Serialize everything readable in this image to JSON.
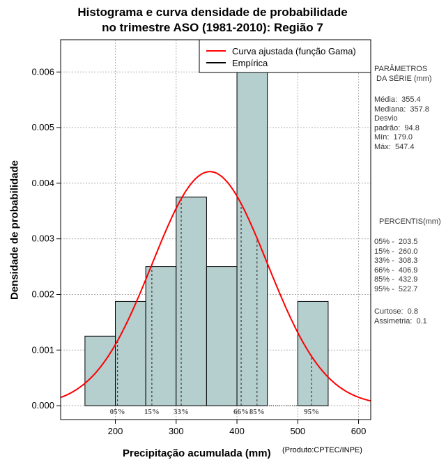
{
  "chart_data": {
    "type": "bar",
    "title_line1": "Histograma e curva densidade de probabilidade",
    "title_line2": "no trimestre ASO (1981-2010): Região 7",
    "xlabel": "Precipitação acumulada (mm)",
    "ylabel": "Densidade de probabilidade",
    "credit": "(Produto:CPTEC/INPE)",
    "xlim": [
      110,
      620
    ],
    "ylim": [
      -0.00025,
      0.00658
    ],
    "x_ticks": [
      200,
      300,
      400,
      500,
      600
    ],
    "y_ticks": [
      0.0,
      0.001,
      0.002,
      0.003,
      0.004,
      0.005,
      0.006
    ],
    "y_tick_labels": [
      "0.000",
      "0.001",
      "0.002",
      "0.003",
      "0.004",
      "0.005",
      "0.006"
    ],
    "bins": [
      {
        "start": 150,
        "end": 200,
        "density": 0.00125
      },
      {
        "start": 200,
        "end": 250,
        "density": 0.001875
      },
      {
        "start": 250,
        "end": 300,
        "density": 0.0025
      },
      {
        "start": 300,
        "end": 350,
        "density": 0.00375
      },
      {
        "start": 350,
        "end": 400,
        "density": 0.0025
      },
      {
        "start": 400,
        "end": 450,
        "density": 0.0066
      },
      {
        "start": 450,
        "end": 500,
        "density": 0
      },
      {
        "start": 500,
        "end": 550,
        "density": 0.001875
      }
    ],
    "curve": {
      "mean": 355.4,
      "sd": 94.8
    },
    "legend": [
      {
        "label": "Curva ajustada (função Gama)",
        "color": "#ff0000"
      },
      {
        "label": "Empírica",
        "color": "#000000"
      }
    ],
    "percentile_markers": [
      {
        "label": "05%",
        "value": 203.5
      },
      {
        "label": "15%",
        "value": 260.0
      },
      {
        "label": "33%",
        "value": 308.3
      },
      {
        "label": "66%",
        "value": 406.9
      },
      {
        "label": "85%",
        "value": 432.9
      },
      {
        "label": "95%",
        "value": 522.7
      }
    ],
    "colors": {
      "bar_fill": "#b5cece",
      "curve": "#ff0000",
      "grid": "#b0b0b0"
    }
  },
  "sidebar": {
    "params_header": "PARÂMETROS\n DA SÉRIE (mm)",
    "params": "Média:  355.4\nMediana:  357.8\nDesvio\npadrão:  94.8\nMín:  179.0\nMáx:  547.4",
    "percentis_header": "PERCENTIS(mm)",
    "percentis": "05% -  203.5\n15% -  260.0\n33% -  308.3\n66% -  406.9\n85% -  432.9\n95% -  522.7",
    "stats": "Curtose:  0.8\nAssimetria:  0.1"
  }
}
